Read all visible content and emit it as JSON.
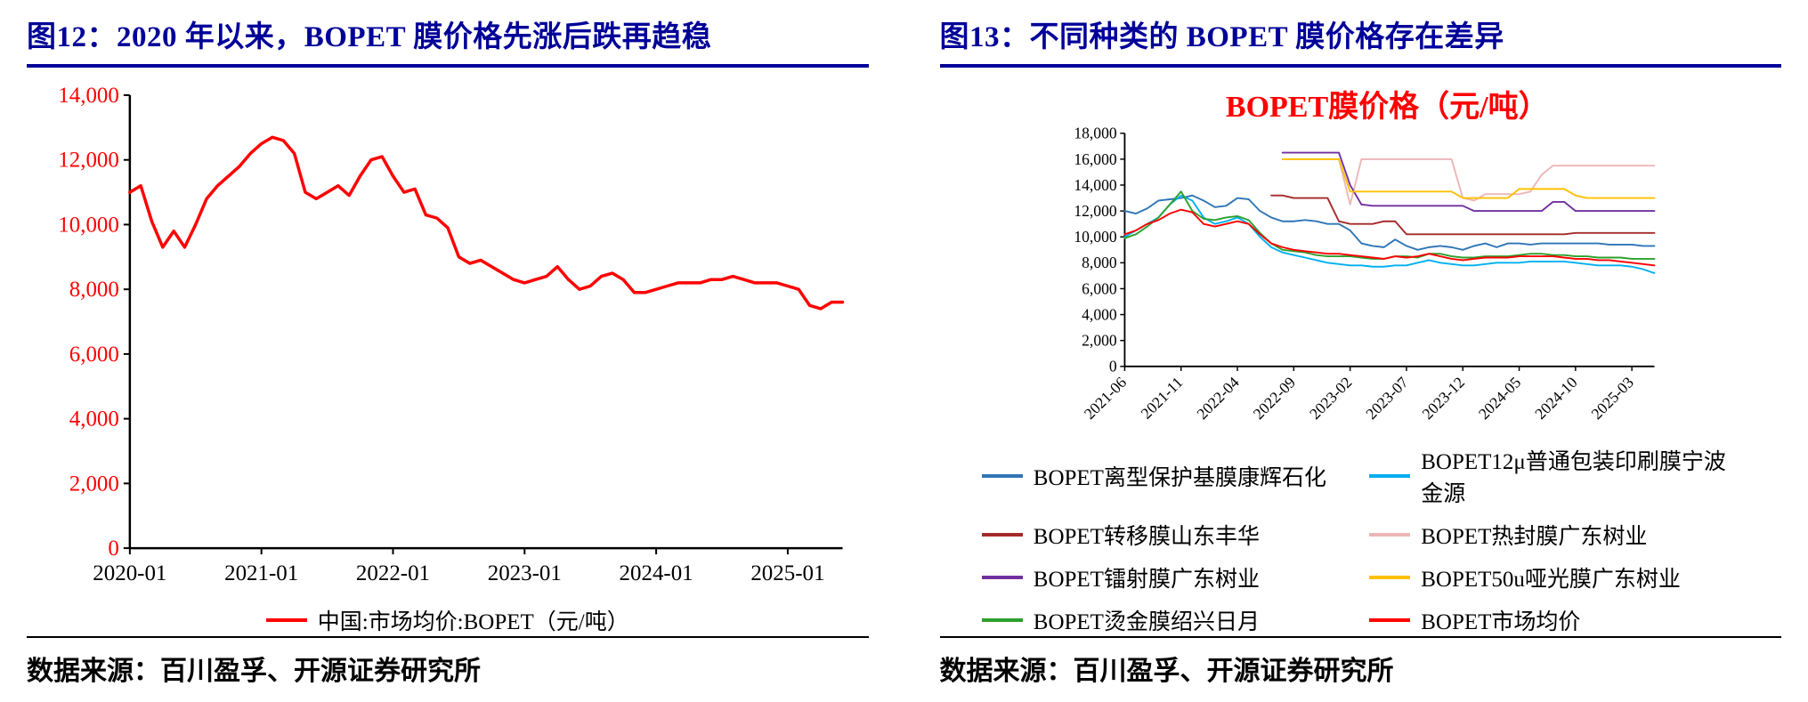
{
  "colors": {
    "title_navy": "#000099",
    "chart_title_red": "#FF0000",
    "axis_black": "#000000",
    "fig12_ytick_red": "#FF0000"
  },
  "left_figure": {
    "title": "图12：2020 年以来，BOPET 膜价格先涨后跌再趋稳",
    "source": "数据来源：百川盈孚、开源证券研究所"
  },
  "right_figure": {
    "title": "图13：不同种类的 BOPET 膜价格存在差异",
    "chart_title": "BOPET膜价格（元/吨）",
    "source": "数据来源：百川盈孚、开源证券研究所"
  },
  "chart_data": [
    {
      "id": "fig12",
      "type": "line",
      "title": "图12：2020 年以来，BOPET 膜价格先涨后跌再趋稳",
      "ylim": [
        0,
        14000
      ],
      "ytick_step": 2000,
      "ytick_color": "#FF0000",
      "xtick_color": "#000000",
      "grid": false,
      "legend_position": "bottom",
      "xticks": [
        "2020-01",
        "2021-01",
        "2022-01",
        "2023-01",
        "2024-01",
        "2025-01"
      ],
      "x": [
        "2020-01",
        "2020-02",
        "2020-03",
        "2020-04",
        "2020-05",
        "2020-06",
        "2020-07",
        "2020-08",
        "2020-09",
        "2020-10",
        "2020-11",
        "2020-12",
        "2021-01",
        "2021-02",
        "2021-03",
        "2021-04",
        "2021-05",
        "2021-06",
        "2021-07",
        "2021-08",
        "2021-09",
        "2021-10",
        "2021-11",
        "2021-12",
        "2022-01",
        "2022-02",
        "2022-03",
        "2022-04",
        "2022-05",
        "2022-06",
        "2022-07",
        "2022-08",
        "2022-09",
        "2022-10",
        "2022-11",
        "2022-12",
        "2023-01",
        "2023-02",
        "2023-03",
        "2023-04",
        "2023-05",
        "2023-06",
        "2023-07",
        "2023-08",
        "2023-09",
        "2023-10",
        "2023-11",
        "2023-12",
        "2024-01",
        "2024-02",
        "2024-03",
        "2024-04",
        "2024-05",
        "2024-06",
        "2024-07",
        "2024-08",
        "2024-09",
        "2024-10",
        "2024-11",
        "2024-12",
        "2025-01",
        "2025-02",
        "2025-03",
        "2025-04",
        "2025-05",
        "2025-06"
      ],
      "series": [
        {
          "name": "中国:市场均价:BOPET（元/吨）",
          "color": "#FF0000",
          "values": [
            11000,
            11200,
            10100,
            9300,
            9800,
            9300,
            10000,
            10800,
            11200,
            11500,
            11800,
            12200,
            12500,
            12700,
            12600,
            12200,
            11000,
            10800,
            11000,
            11200,
            10900,
            11500,
            12000,
            12100,
            11500,
            11000,
            11100,
            10300,
            10200,
            9900,
            9000,
            8800,
            8900,
            8700,
            8500,
            8300,
            8200,
            8300,
            8400,
            8700,
            8300,
            8000,
            8100,
            8400,
            8500,
            8300,
            7900,
            7900,
            8000,
            8100,
            8200,
            8200,
            8200,
            8300,
            8300,
            8400,
            8300,
            8200,
            8200,
            8200,
            8100,
            8000,
            7500,
            7400,
            7600,
            7600
          ]
        }
      ]
    },
    {
      "id": "fig13",
      "type": "line",
      "title": "BOPET膜价格（元/吨）",
      "ylim": [
        0,
        18000
      ],
      "ytick_step": 2000,
      "ytick_color": "#000000",
      "xtick_color": "#000000",
      "xtick_rotate": -45,
      "grid": false,
      "legend_position": "bottom",
      "legend_columns": 2,
      "xticks": [
        "2021-06",
        "2021-11",
        "2022-04",
        "2022-09",
        "2023-02",
        "2023-07",
        "2023-12",
        "2024-05",
        "2024-10",
        "2025-03"
      ],
      "x": [
        "2021-06",
        "2021-07",
        "2021-08",
        "2021-09",
        "2021-10",
        "2021-11",
        "2021-12",
        "2022-01",
        "2022-02",
        "2022-03",
        "2022-04",
        "2022-05",
        "2022-06",
        "2022-07",
        "2022-08",
        "2022-09",
        "2022-10",
        "2022-11",
        "2022-12",
        "2023-01",
        "2023-02",
        "2023-03",
        "2023-04",
        "2023-05",
        "2023-06",
        "2023-07",
        "2023-08",
        "2023-09",
        "2023-10",
        "2023-11",
        "2023-12",
        "2024-01",
        "2024-02",
        "2024-03",
        "2024-04",
        "2024-05",
        "2024-06",
        "2024-07",
        "2024-08",
        "2024-09",
        "2024-10",
        "2024-11",
        "2024-12",
        "2025-01",
        "2025-02",
        "2025-03",
        "2025-04",
        "2025-05"
      ],
      "series": [
        {
          "name": "BOPET离型保护基膜康辉石化",
          "color": "#2E75B6",
          "values": [
            12000,
            11800,
            12200,
            12800,
            12900,
            13000,
            13200,
            12800,
            12300,
            12400,
            13000,
            12900,
            12000,
            11500,
            11200,
            11200,
            11300,
            11200,
            11000,
            11000,
            10500,
            9500,
            9300,
            9200,
            9800,
            9300,
            9000,
            9200,
            9300,
            9200,
            9000,
            9300,
            9500,
            9200,
            9500,
            9500,
            9400,
            9500,
            9500,
            9500,
            9500,
            9500,
            9500,
            9400,
            9400,
            9400,
            9300,
            9300
          ]
        },
        {
          "name": "BOPET12μ普通包装印刷膜宁波金源",
          "color": "#00B0F0",
          "values": [
            10000,
            10500,
            11000,
            11500,
            12500,
            13200,
            12800,
            11500,
            11000,
            11200,
            11500,
            11000,
            10000,
            9200,
            8800,
            8600,
            8400,
            8200,
            8000,
            7900,
            7800,
            7800,
            7700,
            7700,
            7800,
            7800,
            8000,
            8200,
            8000,
            7900,
            7800,
            7800,
            7900,
            8000,
            8000,
            8000,
            8100,
            8100,
            8100,
            8100,
            8000,
            7900,
            7800,
            7800,
            7800,
            7700,
            7500,
            7200
          ]
        },
        {
          "name": "BOPET转移膜山东丰华",
          "color": "#A52A2A",
          "values": [
            null,
            null,
            null,
            null,
            null,
            null,
            null,
            null,
            null,
            null,
            null,
            null,
            null,
            13200,
            13200,
            13000,
            13000,
            13000,
            13000,
            11200,
            11000,
            11000,
            11000,
            11200,
            11200,
            10200,
            10200,
            10200,
            10200,
            10200,
            10200,
            10200,
            10200,
            10200,
            10200,
            10200,
            10200,
            10200,
            10200,
            10200,
            10300,
            10300,
            10300,
            10300,
            10300,
            10300,
            10300,
            10300
          ]
        },
        {
          "name": "BOPET热封膜广东树业",
          "color": "#EDB6B6",
          "values": [
            null,
            null,
            null,
            null,
            null,
            null,
            null,
            null,
            null,
            null,
            null,
            null,
            null,
            null,
            16000,
            16000,
            16000,
            16000,
            16000,
            16000,
            12500,
            16000,
            16000,
            16000,
            16000,
            16000,
            16000,
            16000,
            16000,
            16000,
            13000,
            12800,
            13300,
            13300,
            13300,
            13300,
            13500,
            14800,
            15500,
            15500,
            15500,
            15500,
            15500,
            15500,
            15500,
            15500,
            15500,
            15500
          ]
        },
        {
          "name": "BOPET镭射膜广东树业",
          "color": "#7030A0",
          "values": [
            null,
            null,
            null,
            null,
            null,
            null,
            null,
            null,
            null,
            null,
            null,
            null,
            null,
            null,
            16500,
            16500,
            16500,
            16500,
            16500,
            16500,
            14000,
            12500,
            12400,
            12400,
            12400,
            12400,
            12400,
            12400,
            12400,
            12400,
            12400,
            12000,
            12000,
            12000,
            12000,
            12000,
            12000,
            12000,
            12700,
            12700,
            12000,
            12000,
            12000,
            12000,
            12000,
            12000,
            12000,
            12000
          ]
        },
        {
          "name": "BOPET50u哑光膜广东树业",
          "color": "#FFC000",
          "values": [
            null,
            null,
            null,
            null,
            null,
            null,
            null,
            null,
            null,
            null,
            null,
            null,
            null,
            null,
            16000,
            16000,
            16000,
            16000,
            16000,
            16000,
            13500,
            13500,
            13500,
            13500,
            13500,
            13500,
            13500,
            13500,
            13500,
            13500,
            13000,
            13000,
            13000,
            13000,
            13000,
            13700,
            13700,
            13700,
            13700,
            13700,
            13200,
            13000,
            13000,
            13000,
            13000,
            13000,
            13000,
            13000
          ]
        },
        {
          "name": "BOPET烫金膜绍兴日月",
          "color": "#2CA02C",
          "values": [
            9900,
            10200,
            10800,
            11500,
            12500,
            13500,
            12000,
            11400,
            11300,
            11500,
            11600,
            11300,
            10300,
            9500,
            9000,
            8900,
            8800,
            8600,
            8500,
            8500,
            8500,
            8400,
            8300,
            8300,
            8500,
            8500,
            8400,
            8700,
            8700,
            8500,
            8400,
            8400,
            8500,
            8500,
            8500,
            8600,
            8700,
            8700,
            8600,
            8600,
            8500,
            8500,
            8400,
            8400,
            8400,
            8300,
            8300,
            8300
          ]
        },
        {
          "name": "BOPET市场均价",
          "color": "#FF0000",
          "values": [
            10200,
            10500,
            11000,
            11300,
            11800,
            12100,
            11900,
            11000,
            10800,
            11000,
            11200,
            11000,
            10200,
            9500,
            9200,
            9000,
            8900,
            8800,
            8700,
            8700,
            8600,
            8500,
            8400,
            8300,
            8500,
            8400,
            8500,
            8700,
            8500,
            8300,
            8200,
            8300,
            8400,
            8400,
            8400,
            8500,
            8500,
            8500,
            8500,
            8400,
            8300,
            8300,
            8200,
            8200,
            8100,
            8000,
            7900,
            7800
          ]
        }
      ]
    }
  ]
}
